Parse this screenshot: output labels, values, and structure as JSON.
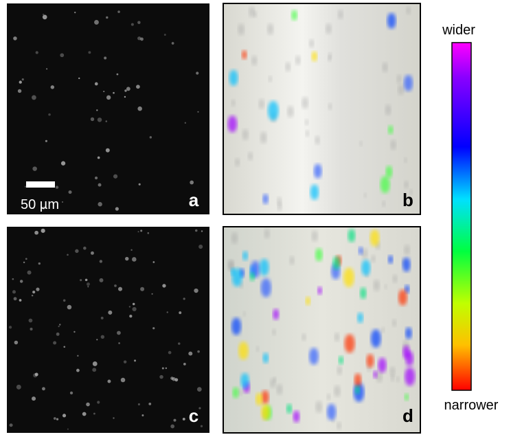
{
  "panels": [
    {
      "label": "a"
    },
    {
      "label": "b"
    },
    {
      "label": "c"
    },
    {
      "label": "d"
    }
  ],
  "scale_bar": {
    "label": "50 µm"
  },
  "colorbar": {
    "top_label": "wider",
    "bottom_label": "narrower"
  }
}
